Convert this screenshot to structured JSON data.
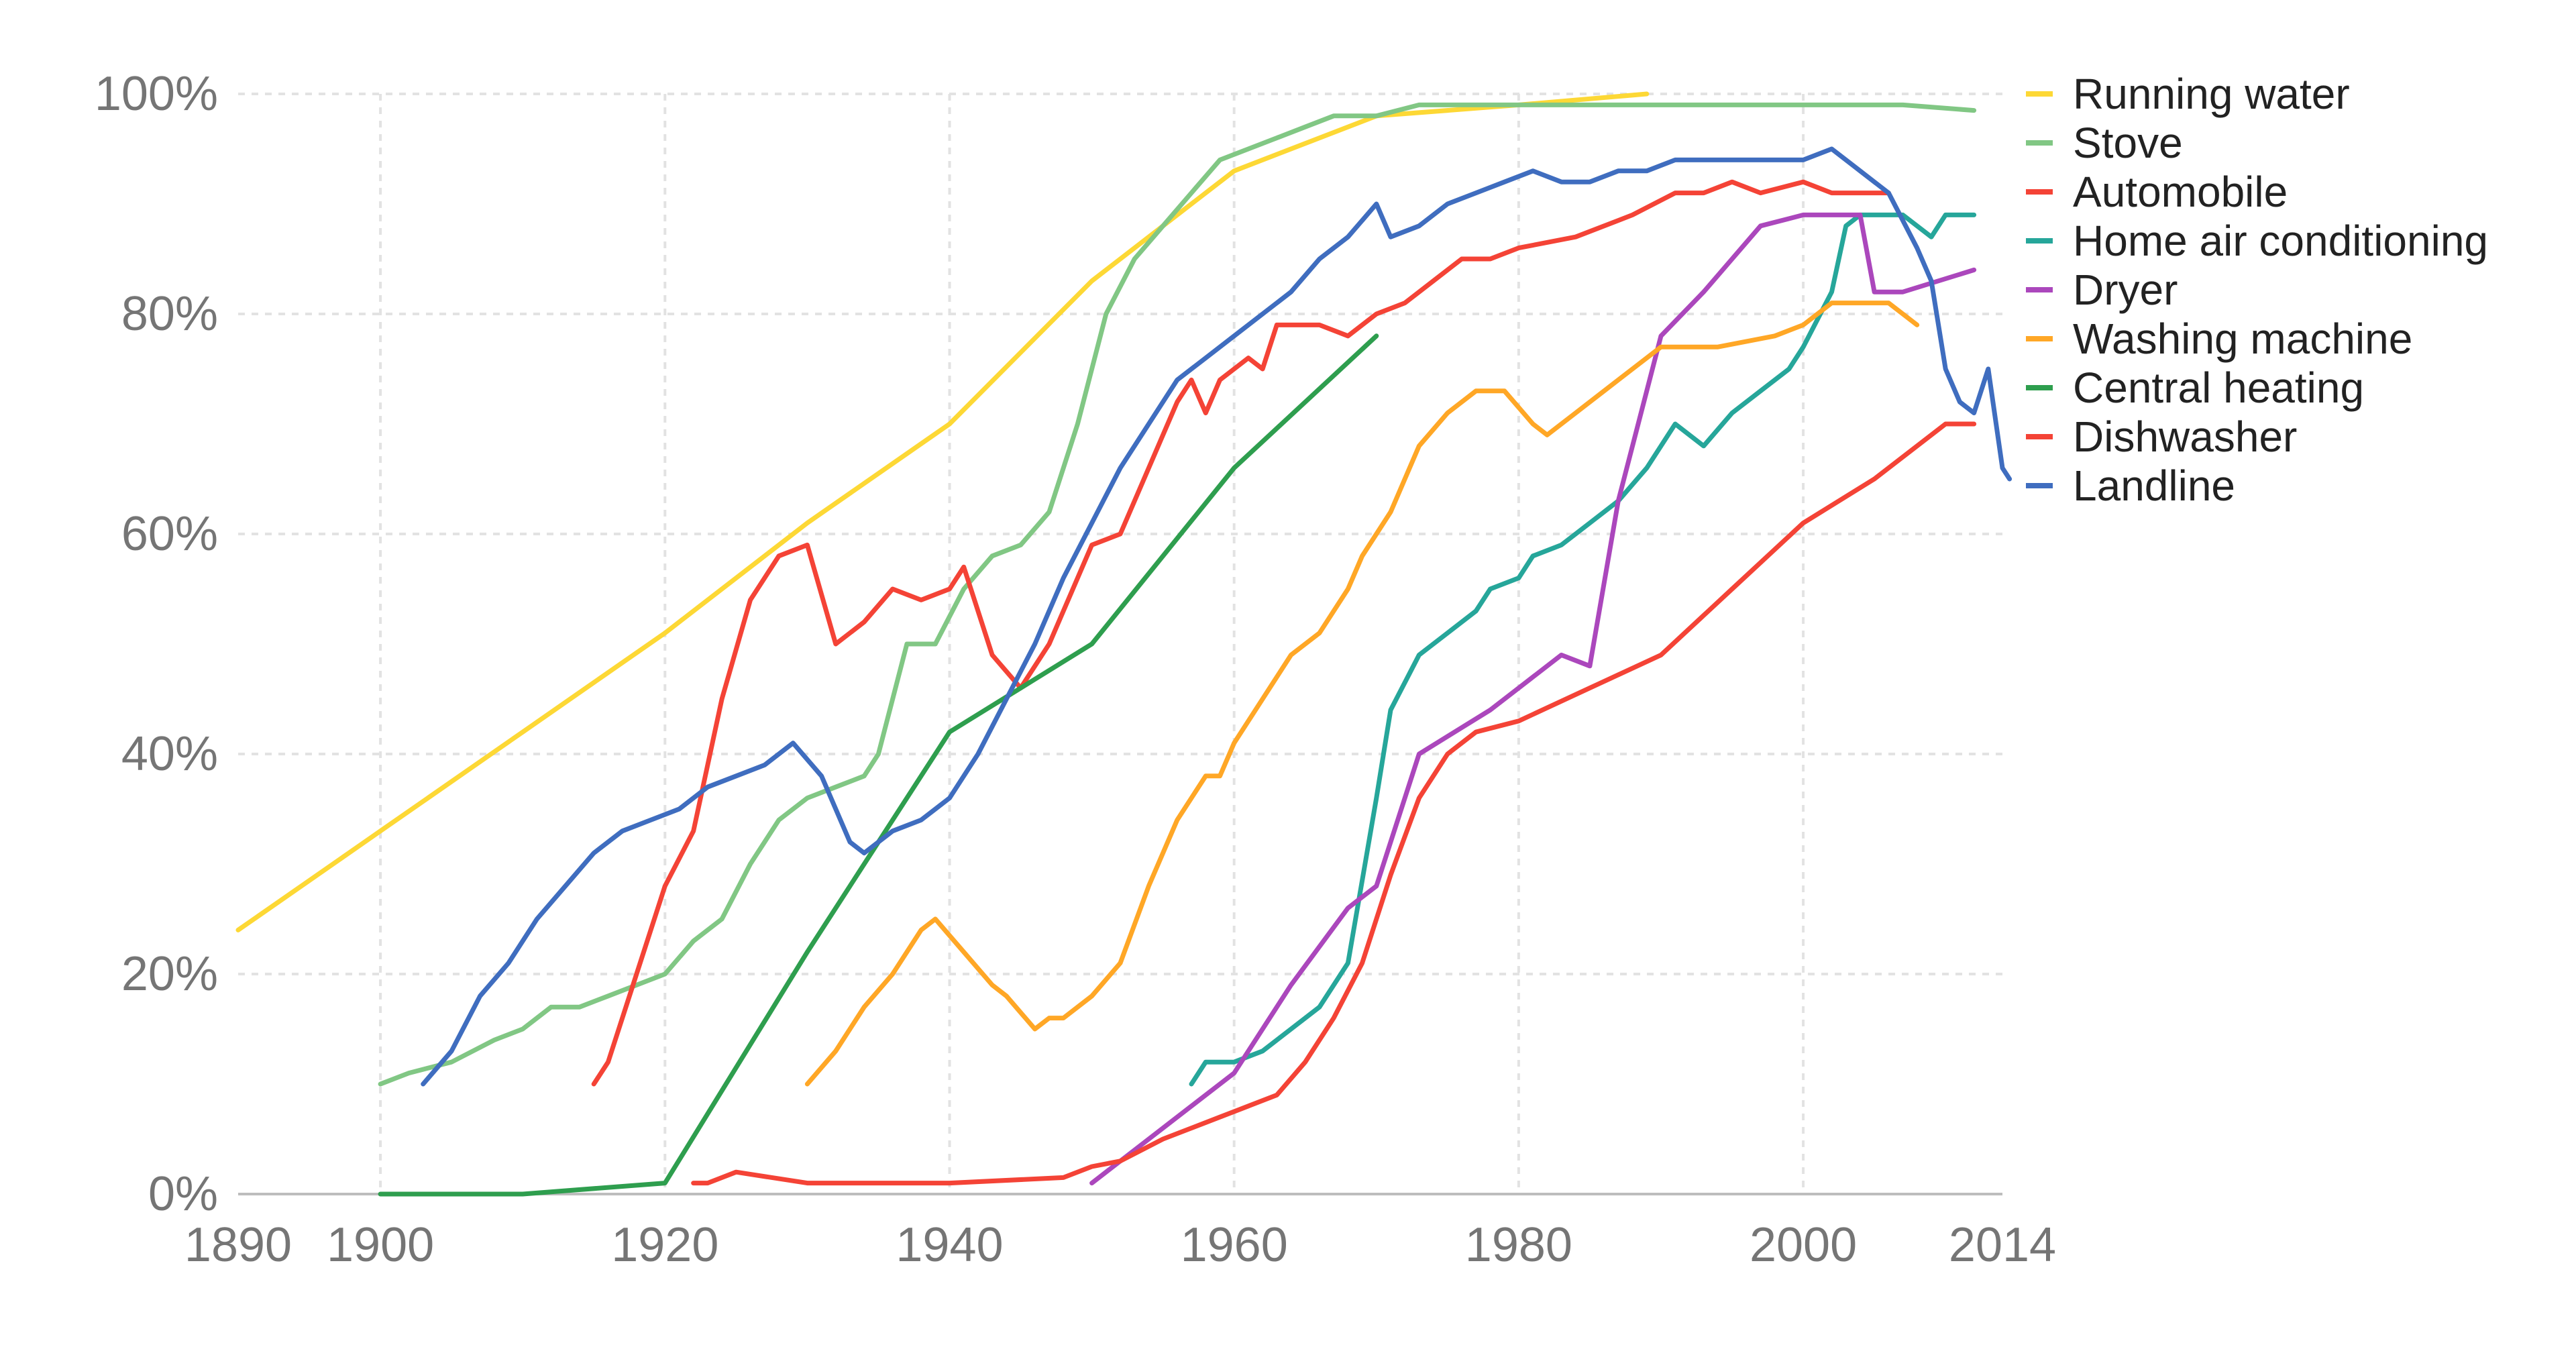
{
  "chart_data": {
    "type": "line",
    "title": "",
    "xlabel": "",
    "ylabel": "",
    "xlim": [
      1890,
      2014
    ],
    "ylim": [
      0,
      100
    ],
    "x_ticks": [
      {
        "value": 1890,
        "label": "1890"
      },
      {
        "value": 1900,
        "label": "1900"
      },
      {
        "value": 1920,
        "label": "1920"
      },
      {
        "value": 1940,
        "label": "1940"
      },
      {
        "value": 1960,
        "label": "1960"
      },
      {
        "value": 1980,
        "label": "1980"
      },
      {
        "value": 2000,
        "label": "2000"
      },
      {
        "value": 2014,
        "label": "2014"
      }
    ],
    "y_ticks": [
      {
        "value": 0,
        "label": "0%"
      },
      {
        "value": 20,
        "label": "20%"
      },
      {
        "value": 40,
        "label": "40%"
      },
      {
        "value": 60,
        "label": "60%"
      },
      {
        "value": 80,
        "label": "80%"
      },
      {
        "value": 100,
        "label": "100%"
      }
    ],
    "grid": true,
    "legend_position": "right",
    "series": [
      {
        "name": "Running water",
        "color": "#FDD835",
        "points": [
          [
            1890,
            24
          ],
          [
            1900,
            33
          ],
          [
            1910,
            42
          ],
          [
            1920,
            51
          ],
          [
            1930,
            61
          ],
          [
            1940,
            70
          ],
          [
            1950,
            83
          ],
          [
            1960,
            93
          ],
          [
            1970,
            98
          ],
          [
            1980,
            99
          ],
          [
            1989,
            100
          ]
        ]
      },
      {
        "name": "Stove",
        "color": "#81C784",
        "points": [
          [
            1900,
            10
          ],
          [
            1902,
            11
          ],
          [
            1905,
            12
          ],
          [
            1908,
            14
          ],
          [
            1910,
            15
          ],
          [
            1912,
            17
          ],
          [
            1914,
            17
          ],
          [
            1916,
            18
          ],
          [
            1918,
            19
          ],
          [
            1920,
            20
          ],
          [
            1922,
            23
          ],
          [
            1924,
            25
          ],
          [
            1926,
            30
          ],
          [
            1928,
            34
          ],
          [
            1930,
            36
          ],
          [
            1932,
            37
          ],
          [
            1934,
            38
          ],
          [
            1935,
            40
          ],
          [
            1937,
            50
          ],
          [
            1939,
            50
          ],
          [
            1941,
            55
          ],
          [
            1943,
            58
          ],
          [
            1945,
            59
          ],
          [
            1947,
            62
          ],
          [
            1949,
            70
          ],
          [
            1951,
            80
          ],
          [
            1953,
            85
          ],
          [
            1955,
            88
          ],
          [
            1957,
            91
          ],
          [
            1959,
            94
          ],
          [
            1961,
            95
          ],
          [
            1963,
            96
          ],
          [
            1965,
            97
          ],
          [
            1967,
            98
          ],
          [
            1970,
            98
          ],
          [
            1973,
            99
          ],
          [
            1980,
            99
          ],
          [
            1990,
            99
          ],
          [
            2000,
            99
          ],
          [
            2007,
            99
          ],
          [
            2012,
            98.5
          ]
        ]
      },
      {
        "name": "Automobile",
        "color": "#F44336",
        "points": [
          [
            1915,
            10
          ],
          [
            1916,
            12
          ],
          [
            1918,
            20
          ],
          [
            1920,
            28
          ],
          [
            1922,
            33
          ],
          [
            1924,
            45
          ],
          [
            1926,
            54
          ],
          [
            1928,
            58
          ],
          [
            1930,
            59
          ],
          [
            1932,
            50
          ],
          [
            1934,
            52
          ],
          [
            1936,
            55
          ],
          [
            1938,
            54
          ],
          [
            1940,
            55
          ],
          [
            1941,
            57
          ],
          [
            1943,
            49
          ],
          [
            1945,
            46
          ],
          [
            1947,
            50
          ],
          [
            1948,
            53
          ],
          [
            1950,
            59
          ],
          [
            1952,
            60
          ],
          [
            1954,
            66
          ],
          [
            1956,
            72
          ],
          [
            1957,
            74
          ],
          [
            1958,
            71
          ],
          [
            1959,
            74
          ],
          [
            1961,
            76
          ],
          [
            1962,
            75
          ],
          [
            1963,
            79
          ],
          [
            1966,
            79
          ],
          [
            1968,
            78
          ],
          [
            1970,
            80
          ],
          [
            1972,
            81
          ],
          [
            1974,
            83
          ],
          [
            1976,
            85
          ],
          [
            1978,
            85
          ],
          [
            1980,
            86
          ],
          [
            1984,
            87
          ],
          [
            1988,
            89
          ],
          [
            1991,
            91
          ],
          [
            1993,
            91
          ],
          [
            1995,
            92
          ],
          [
            1997,
            91
          ],
          [
            2000,
            92
          ],
          [
            2002,
            91
          ],
          [
            2006,
            91
          ]
        ]
      },
      {
        "name": "Home air conditioning",
        "color": "#26A69A",
        "points": [
          [
            1957,
            10
          ],
          [
            1958,
            12
          ],
          [
            1960,
            12
          ],
          [
            1962,
            13
          ],
          [
            1964,
            15
          ],
          [
            1966,
            17
          ],
          [
            1968,
            21
          ],
          [
            1970,
            36
          ],
          [
            1971,
            44
          ],
          [
            1973,
            49
          ],
          [
            1975,
            51
          ],
          [
            1977,
            53
          ],
          [
            1978,
            55
          ],
          [
            1980,
            56
          ],
          [
            1981,
            58
          ],
          [
            1983,
            59
          ],
          [
            1985,
            61
          ],
          [
            1987,
            63
          ],
          [
            1989,
            66
          ],
          [
            1991,
            70
          ],
          [
            1993,
            68
          ],
          [
            1995,
            71
          ],
          [
            1997,
            73
          ],
          [
            1999,
            75
          ],
          [
            2000,
            77
          ],
          [
            2002,
            82
          ],
          [
            2003,
            88
          ],
          [
            2004,
            89
          ],
          [
            2007,
            89
          ],
          [
            2009,
            87
          ],
          [
            2010,
            89
          ],
          [
            2012,
            89
          ]
        ]
      },
      {
        "name": "Dryer",
        "color": "#AB47BC",
        "points": [
          [
            1950,
            1
          ],
          [
            1955,
            6
          ],
          [
            1960,
            11
          ],
          [
            1964,
            19
          ],
          [
            1968,
            26
          ],
          [
            1970,
            28
          ],
          [
            1973,
            40
          ],
          [
            1978,
            44
          ],
          [
            1983,
            49
          ],
          [
            1985,
            48
          ],
          [
            1987,
            63
          ],
          [
            1990,
            78
          ],
          [
            1993,
            82
          ],
          [
            1995,
            85
          ],
          [
            1997,
            88
          ],
          [
            2000,
            89
          ],
          [
            2002,
            89
          ],
          [
            2004,
            89
          ],
          [
            2005,
            82
          ],
          [
            2007,
            82
          ],
          [
            2012,
            84
          ]
        ]
      },
      {
        "name": "Washing machine",
        "color": "#FFA726",
        "points": [
          [
            1930,
            10
          ],
          [
            1932,
            13
          ],
          [
            1934,
            17
          ],
          [
            1936,
            20
          ],
          [
            1938,
            24
          ],
          [
            1939,
            25
          ],
          [
            1941,
            22
          ],
          [
            1943,
            19
          ],
          [
            1944,
            18
          ],
          [
            1946,
            15
          ],
          [
            1947,
            16
          ],
          [
            1948,
            16
          ],
          [
            1950,
            18
          ],
          [
            1952,
            21
          ],
          [
            1954,
            28
          ],
          [
            1956,
            34
          ],
          [
            1958,
            38
          ],
          [
            1959,
            38
          ],
          [
            1960,
            41
          ],
          [
            1962,
            45
          ],
          [
            1964,
            49
          ],
          [
            1966,
            51
          ],
          [
            1968,
            55
          ],
          [
            1969,
            58
          ],
          [
            1971,
            62
          ],
          [
            1973,
            68
          ],
          [
            1975,
            71
          ],
          [
            1977,
            73
          ],
          [
            1979,
            73
          ],
          [
            1981,
            70
          ],
          [
            1982,
            69
          ],
          [
            1984,
            71
          ],
          [
            1986,
            73
          ],
          [
            1988,
            75
          ],
          [
            1990,
            77
          ],
          [
            1994,
            77
          ],
          [
            1998,
            78
          ],
          [
            2000,
            79
          ],
          [
            2002,
            81
          ],
          [
            2006,
            81
          ],
          [
            2008,
            79
          ]
        ]
      },
      {
        "name": "Central heating",
        "color": "#2E9E4E",
        "points": [
          [
            1900,
            0
          ],
          [
            1910,
            0
          ],
          [
            1920,
            1
          ],
          [
            1930,
            22
          ],
          [
            1940,
            42
          ],
          [
            1950,
            50
          ],
          [
            1960,
            66
          ],
          [
            1970,
            78
          ]
        ]
      },
      {
        "name": "Dishwasher",
        "color": "#F44336",
        "points": [
          [
            1922,
            1
          ],
          [
            1923,
            1
          ],
          [
            1925,
            2
          ],
          [
            1930,
            1
          ],
          [
            1935,
            1
          ],
          [
            1940,
            1
          ],
          [
            1948,
            1.5
          ],
          [
            1950,
            2.5
          ],
          [
            1952,
            3
          ],
          [
            1955,
            5
          ],
          [
            1957,
            6
          ],
          [
            1959,
            7
          ],
          [
            1961,
            8
          ],
          [
            1963,
            9
          ],
          [
            1965,
            12
          ],
          [
            1967,
            16
          ],
          [
            1969,
            21
          ],
          [
            1971,
            29
          ],
          [
            1973,
            36
          ],
          [
            1975,
            40
          ],
          [
            1977,
            42
          ],
          [
            1980,
            43
          ],
          [
            1985,
            46
          ],
          [
            1990,
            49
          ],
          [
            1995,
            55
          ],
          [
            2000,
            61
          ],
          [
            2005,
            65
          ],
          [
            2010,
            70
          ],
          [
            2012,
            70
          ]
        ]
      },
      {
        "name": "Landline",
        "color": "#3F6DBF",
        "points": [
          [
            1903,
            10
          ],
          [
            1905,
            13
          ],
          [
            1907,
            18
          ],
          [
            1909,
            21
          ],
          [
            1911,
            25
          ],
          [
            1913,
            28
          ],
          [
            1915,
            31
          ],
          [
            1917,
            33
          ],
          [
            1919,
            34
          ],
          [
            1921,
            35
          ],
          [
            1923,
            37
          ],
          [
            1925,
            38
          ],
          [
            1927,
            39
          ],
          [
            1929,
            41
          ],
          [
            1931,
            38
          ],
          [
            1933,
            32
          ],
          [
            1934,
            31
          ],
          [
            1936,
            33
          ],
          [
            1938,
            34
          ],
          [
            1940,
            36
          ],
          [
            1942,
            40
          ],
          [
            1944,
            45
          ],
          [
            1946,
            50
          ],
          [
            1948,
            56
          ],
          [
            1950,
            61
          ],
          [
            1952,
            66
          ],
          [
            1954,
            70
          ],
          [
            1956,
            74
          ],
          [
            1958,
            76
          ],
          [
            1960,
            78
          ],
          [
            1962,
            80
          ],
          [
            1964,
            82
          ],
          [
            1966,
            85
          ],
          [
            1968,
            87
          ],
          [
            1970,
            90
          ],
          [
            1971,
            87
          ],
          [
            1973,
            88
          ],
          [
            1975,
            90
          ],
          [
            1977,
            91
          ],
          [
            1979,
            92
          ],
          [
            1981,
            93
          ],
          [
            1983,
            92
          ],
          [
            1985,
            92
          ],
          [
            1987,
            93
          ],
          [
            1989,
            93
          ],
          [
            1991,
            94
          ],
          [
            1995,
            94
          ],
          [
            1998,
            94
          ],
          [
            2000,
            94
          ],
          [
            2002,
            95
          ],
          [
            2004,
            93
          ],
          [
            2006,
            91
          ],
          [
            2008,
            86
          ],
          [
            2009,
            83
          ],
          [
            2010,
            75
          ],
          [
            2011,
            72
          ],
          [
            2012,
            71
          ],
          [
            2013,
            75
          ],
          [
            2014,
            66
          ],
          [
            2014.5,
            65
          ]
        ]
      }
    ]
  }
}
